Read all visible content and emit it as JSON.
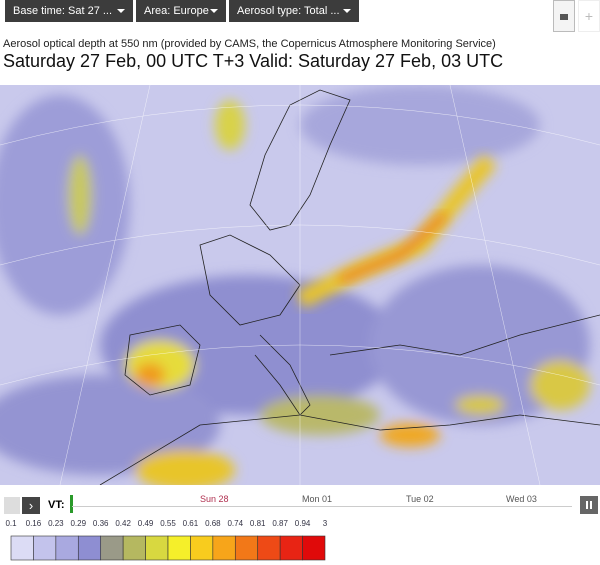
{
  "toolbar": {
    "dropdowns": [
      "Base time: Sat 27 ...",
      "Area: Europe",
      "Aerosol type: Total ..."
    ]
  },
  "header": {
    "subtitle": "Aerosol optical depth at 550 nm (provided by CAMS, the Copernicus Atmosphere Monitoring Service)",
    "title": "Saturday 27 Feb, 00 UTC T+3 Valid: Saturday 27 Feb, 03 UTC"
  },
  "timeline": {
    "label": "VT:",
    "days": [
      "Sun 28",
      "Mon 01",
      "Tue 02",
      "Wed 03"
    ]
  },
  "legend": {
    "values": [
      0.1,
      0.16,
      0.23,
      0.29,
      0.36,
      0.42,
      0.49,
      0.55,
      0.61,
      0.68,
      0.74,
      0.81,
      0.87,
      0.94,
      3
    ],
    "colors": [
      "#dcdcf5",
      "#c3c3ec",
      "#a9a9e0",
      "#8e8ed2",
      "#9a9a88",
      "#b5b860",
      "#d8d840",
      "#f5ef2a",
      "#f8cc1e",
      "#f7a51a",
      "#f27818",
      "#ee4a16",
      "#e82414",
      "#e00a0a"
    ]
  }
}
